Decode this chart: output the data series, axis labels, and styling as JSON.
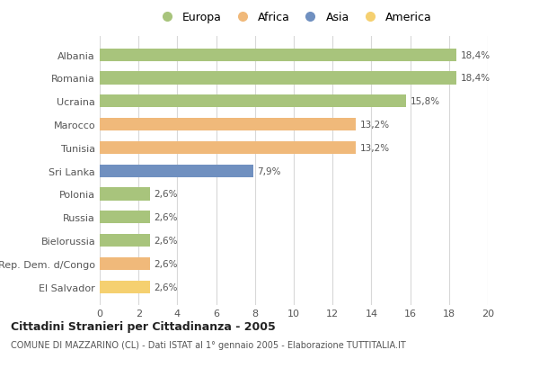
{
  "countries": [
    "Albania",
    "Romania",
    "Ucraina",
    "Marocco",
    "Tunisia",
    "Sri Lanka",
    "Polonia",
    "Russia",
    "Bielorussia",
    "Rep. Dem. d/Congo",
    "El Salvador"
  ],
  "values": [
    18.4,
    18.4,
    15.8,
    13.2,
    13.2,
    7.9,
    2.6,
    2.6,
    2.6,
    2.6,
    2.6
  ],
  "labels": [
    "18,4%",
    "18,4%",
    "15,8%",
    "13,2%",
    "13,2%",
    "7,9%",
    "2,6%",
    "2,6%",
    "2,6%",
    "2,6%",
    "2,6%"
  ],
  "bar_colors": [
    "#a8c47c",
    "#a8c47c",
    "#a8c47c",
    "#f0b97a",
    "#f0b97a",
    "#7090c0",
    "#a8c47c",
    "#a8c47c",
    "#a8c47c",
    "#f0b97a",
    "#f5d070"
  ],
  "legend_labels": [
    "Europa",
    "Africa",
    "Asia",
    "America"
  ],
  "legend_colors": [
    "#a8c47c",
    "#f0b97a",
    "#7090c0",
    "#f5d070"
  ],
  "title": "Cittadini Stranieri per Cittadinanza - 2005",
  "subtitle": "COMUNE DI MAZZARINO (CL) - Dati ISTAT al 1° gennaio 2005 - Elaborazione TUTTITALIA.IT",
  "xlim": [
    0,
    20
  ],
  "xticks": [
    0,
    2,
    4,
    6,
    8,
    10,
    12,
    14,
    16,
    18,
    20
  ],
  "background_color": "#ffffff",
  "grid_color": "#d8d8d8",
  "bar_height": 0.55
}
